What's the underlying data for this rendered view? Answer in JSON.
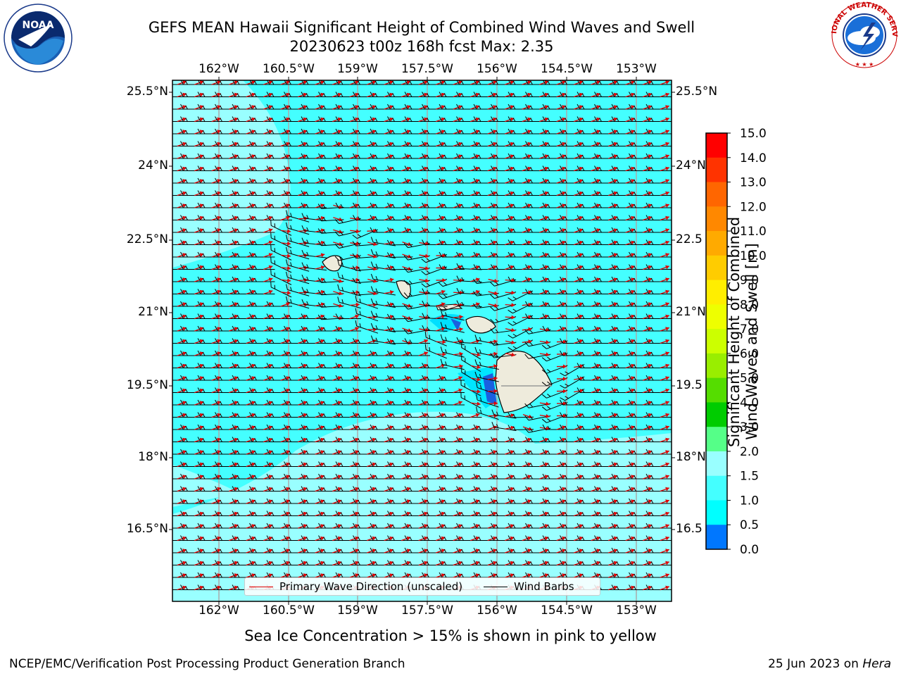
{
  "title": {
    "line1": "GEFS MEAN Hawaii Significant Height of Combined Wind Waves and Swell",
    "line2": "20230623 t00z 168h fcst   Max: 2.35"
  },
  "map": {
    "lon_labels": [
      "162°W",
      "160.5°W",
      "159°W",
      "157.5°W",
      "156°W",
      "154.5°W",
      "153°W"
    ],
    "lat_labels": [
      "25.5°N",
      "24°N",
      "22.5°N",
      "21°N",
      "19.5°N",
      "18°N",
      "16.5°N"
    ],
    "lat_labels_right": [
      "25.5°N",
      "24°N",
      "22.5",
      "21°N",
      "19.5",
      "18°N",
      "16.5"
    ],
    "legend": {
      "wave_label": "Primary Wave Direction (unscaled)",
      "barb_label": "Wind Barbs"
    }
  },
  "colorbar": {
    "title_line1": "Significant Height of Combined",
    "title_line2": "Wind Waves and Swell [m]",
    "ticks": [
      "15.0",
      "14.0",
      "13.0",
      "12.0",
      "11.0",
      "10.0",
      "9.0",
      "8.0",
      "7.0",
      "6.0",
      "5.0",
      "4.0",
      "3.0",
      "2.0",
      "1.5",
      "1.0",
      "0.5",
      "0.0"
    ],
    "colors_top_to_bottom": [
      "#ff0000",
      "#ff3300",
      "#ff6600",
      "#ff8800",
      "#ffaa00",
      "#ffcc00",
      "#ffee00",
      "#eeff00",
      "#ccff00",
      "#99ee00",
      "#55dd00",
      "#00cc00",
      "#55ff88",
      "#99ffff",
      "#44ffff",
      "#00ffff",
      "#0077ff",
      "#0000ff"
    ]
  },
  "sea_ice_note": "Sea Ice Concentration > 15% is shown in pink to yellow",
  "footer": {
    "left": "NCEP/EMC/Verification Post Processing Product Generation Branch",
    "right_prefix": "25 Jun 2023 on ",
    "right_host": "Hera"
  },
  "logos": {
    "noaa_text": "NOAA",
    "nws_text": "NATIONAL WEATHER SERVICE"
  }
}
